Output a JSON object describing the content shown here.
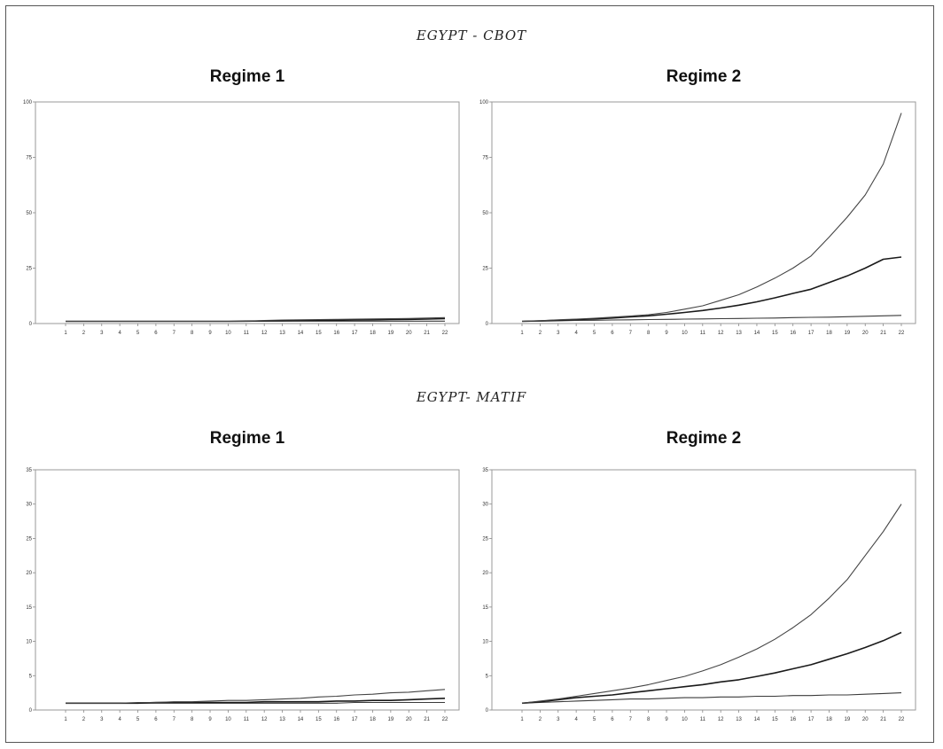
{
  "sections": [
    {
      "title": "EGYPT - CBOT"
    },
    {
      "title": "EGYPT- MATIF"
    }
  ],
  "chart_data": [
    {
      "type": "line",
      "title": "Regime 1",
      "section": "EGYPT - CBOT",
      "x": [
        1,
        2,
        3,
        4,
        5,
        6,
        7,
        8,
        9,
        10,
        11,
        12,
        13,
        14,
        15,
        16,
        17,
        18,
        19,
        20,
        21,
        22
      ],
      "xtick_labels": [
        "1",
        "2",
        "3",
        "4",
        "5",
        "6",
        "7",
        "8",
        "9",
        "10",
        "11",
        "12",
        "13",
        "14",
        "15",
        "16",
        "17",
        "18",
        "19",
        "20",
        "21",
        "22"
      ],
      "ylim": [
        0,
        100
      ],
      "yticks": [
        0,
        25,
        50,
        75,
        100
      ],
      "ytick_labels": [
        "0",
        "25",
        "50",
        "75",
        "100"
      ],
      "series": [
        {
          "values": [
            1.0,
            1.0,
            1.0,
            1.0,
            1.0,
            1.0,
            1.0,
            1.0,
            1.0,
            1.0,
            1.0,
            1.1,
            1.1,
            1.1,
            1.1,
            1.1,
            1.1,
            1.1,
            1.1,
            1.1,
            1.1,
            1.1
          ]
        },
        {
          "values": [
            1.0,
            1.0,
            1.0,
            1.0,
            1.0,
            1.0,
            1.0,
            1.0,
            1.0,
            1.0,
            1.1,
            1.2,
            1.3,
            1.4,
            1.5,
            1.5,
            1.6,
            1.7,
            1.8,
            1.9,
            2.0,
            2.2
          ]
        },
        {
          "values": [
            1.0,
            1.0,
            1.0,
            1.0,
            1.0,
            1.0,
            1.0,
            1.0,
            1.0,
            1.0,
            1.0,
            1.4,
            1.6,
            1.7,
            1.8,
            1.9,
            2.0,
            2.1,
            2.2,
            2.3,
            2.5,
            2.7
          ]
        }
      ],
      "grid": false
    },
    {
      "type": "line",
      "title": "Regime 2",
      "section": "EGYPT - CBOT",
      "x": [
        1,
        2,
        3,
        4,
        5,
        6,
        7,
        8,
        9,
        10,
        11,
        12,
        13,
        14,
        15,
        16,
        17,
        18,
        19,
        20,
        21,
        22
      ],
      "xtick_labels": [
        "1",
        "2",
        "3",
        "4",
        "5",
        "6",
        "7",
        "8",
        "9",
        "10",
        "11",
        "12",
        "13",
        "14",
        "15",
        "16",
        "17",
        "18",
        "19",
        "20",
        "21",
        "22"
      ],
      "ylim": [
        0,
        100
      ],
      "yticks": [
        0,
        25,
        50,
        75,
        100
      ],
      "ytick_labels": [
        "0",
        "25",
        "50",
        "75",
        "100"
      ],
      "series": [
        {
          "values": [
            1.0,
            1.1,
            1.2,
            1.4,
            1.5,
            1.6,
            1.7,
            1.8,
            1.9,
            2.0,
            2.1,
            2.2,
            2.3,
            2.4,
            2.5,
            2.7,
            2.8,
            2.9,
            3.1,
            3.3,
            3.5,
            3.7
          ]
        },
        {
          "values": [
            1.0,
            1.2,
            1.5,
            1.8,
            2.1,
            2.5,
            3.0,
            3.5,
            4.2,
            5.0,
            5.9,
            7.0,
            8.3,
            9.8,
            11.6,
            13.6,
            15.5,
            18.5,
            21.5,
            25.0,
            29.0,
            30.0
          ]
        },
        {
          "values": [
            1.0,
            1.3,
            1.7,
            2.0,
            2.4,
            2.9,
            3.4,
            4.0,
            5.0,
            6.5,
            8.0,
            10.5,
            13.0,
            16.5,
            20.5,
            25.0,
            30.5,
            39.0,
            48.0,
            58.0,
            72.0,
            95.0
          ]
        }
      ],
      "grid": false
    },
    {
      "type": "line",
      "title": "Regime 1",
      "section": "EGYPT- MATIF",
      "x": [
        1,
        2,
        3,
        4,
        5,
        6,
        7,
        8,
        9,
        10,
        11,
        12,
        13,
        14,
        15,
        16,
        17,
        18,
        19,
        20,
        21,
        22
      ],
      "xtick_labels": [
        "1",
        "2",
        "3",
        "4",
        "5",
        "6",
        "7",
        "8",
        "9",
        "10",
        "11",
        "12",
        "13",
        "14",
        "15",
        "16",
        "17",
        "18",
        "19",
        "20",
        "21",
        "22"
      ],
      "ylim": [
        0,
        35
      ],
      "yticks": [
        0,
        5,
        10,
        15,
        20,
        25,
        30,
        35
      ],
      "ytick_labels": [
        "0",
        "5",
        "10",
        "15",
        "20",
        "25",
        "30",
        "35"
      ],
      "series": [
        {
          "values": [
            1.0,
            1.0,
            1.0,
            1.0,
            1.0,
            1.0,
            1.0,
            1.0,
            1.0,
            1.0,
            1.0,
            1.0,
            1.0,
            1.0,
            1.0,
            1.0,
            1.1,
            1.1,
            1.1,
            1.1,
            1.1,
            1.1
          ]
        },
        {
          "values": [
            1.0,
            1.0,
            1.0,
            1.0,
            1.0,
            1.1,
            1.1,
            1.1,
            1.1,
            1.1,
            1.1,
            1.2,
            1.2,
            1.2,
            1.2,
            1.3,
            1.3,
            1.4,
            1.4,
            1.5,
            1.6,
            1.7
          ]
        },
        {
          "values": [
            1.0,
            1.0,
            1.0,
            1.0,
            1.1,
            1.1,
            1.2,
            1.2,
            1.3,
            1.4,
            1.4,
            1.5,
            1.6,
            1.7,
            1.9,
            2.0,
            2.2,
            2.3,
            2.5,
            2.6,
            2.8,
            3.0
          ]
        }
      ],
      "grid": false
    },
    {
      "type": "line",
      "title": "Regime 2",
      "section": "EGYPT- MATIF",
      "x": [
        1,
        2,
        3,
        4,
        5,
        6,
        7,
        8,
        9,
        10,
        11,
        12,
        13,
        14,
        15,
        16,
        17,
        18,
        19,
        20,
        21,
        22
      ],
      "xtick_labels": [
        "1",
        "2",
        "3",
        "4",
        "5",
        "6",
        "7",
        "8",
        "9",
        "10",
        "11",
        "12",
        "13",
        "14",
        "15",
        "16",
        "17",
        "18",
        "19",
        "20",
        "21",
        "22"
      ],
      "ylim": [
        0,
        35
      ],
      "yticks": [
        0,
        5,
        10,
        15,
        20,
        25,
        30,
        35
      ],
      "ytick_labels": [
        "0",
        "5",
        "10",
        "15",
        "20",
        "25",
        "30",
        "35"
      ],
      "series": [
        {
          "values": [
            1.0,
            1.1,
            1.2,
            1.3,
            1.4,
            1.5,
            1.6,
            1.6,
            1.7,
            1.8,
            1.8,
            1.9,
            1.9,
            2.0,
            2.0,
            2.1,
            2.1,
            2.2,
            2.2,
            2.3,
            2.4,
            2.5
          ]
        },
        {
          "values": [
            1.0,
            1.2,
            1.5,
            1.8,
            2.0,
            2.2,
            2.5,
            2.8,
            3.1,
            3.4,
            3.7,
            4.1,
            4.4,
            4.9,
            5.4,
            6.0,
            6.6,
            7.4,
            8.2,
            9.1,
            10.1,
            11.3
          ]
        },
        {
          "values": [
            1.0,
            1.3,
            1.6,
            2.0,
            2.4,
            2.8,
            3.2,
            3.7,
            4.3,
            4.9,
            5.7,
            6.6,
            7.7,
            8.9,
            10.3,
            12.0,
            13.9,
            16.3,
            19.0,
            22.5,
            26.0,
            30.0
          ]
        }
      ],
      "grid": false
    }
  ]
}
